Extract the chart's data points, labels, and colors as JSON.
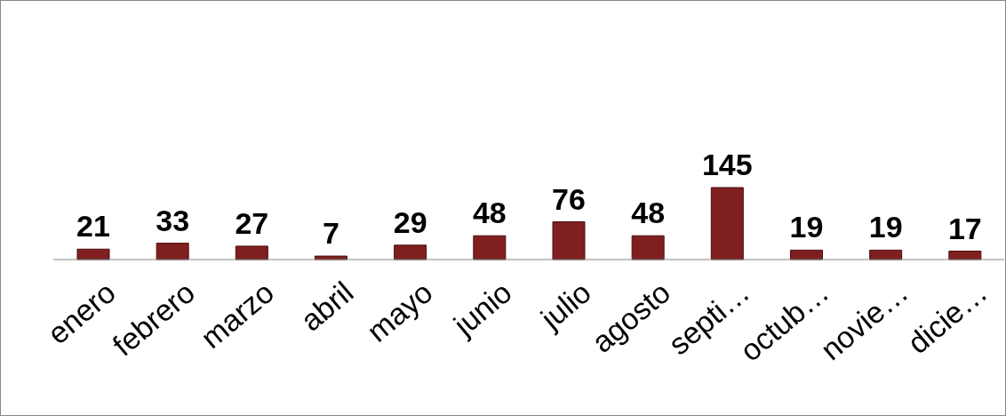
{
  "chart_data": {
    "type": "bar",
    "categories": [
      "enero",
      "febrero",
      "marzo",
      "abril",
      "mayo",
      "junio",
      "julio",
      "agosto",
      "septi…",
      "octub…",
      "novie…",
      "dicie…"
    ],
    "values": [
      21,
      33,
      27,
      7,
      29,
      48,
      76,
      48,
      145,
      19,
      19,
      17
    ],
    "color": "#7f1f1f",
    "data_labels": true,
    "grid": false,
    "legend": false
  }
}
